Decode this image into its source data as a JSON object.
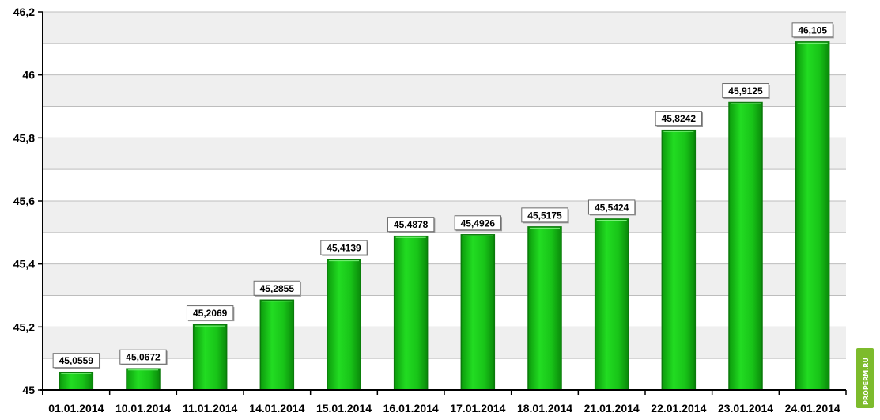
{
  "chart_data": {
    "type": "bar",
    "categories": [
      "01.01.2014",
      "10.01.2014",
      "11.01.2014",
      "14.01.2014",
      "15.01.2014",
      "16.01.2014",
      "17.01.2014",
      "18.01.2014",
      "21.01.2014",
      "22.01.2014",
      "23.01.2014",
      "24.01.2014"
    ],
    "values": [
      45.0559,
      45.0672,
      45.2069,
      45.2855,
      45.4139,
      45.4878,
      45.4926,
      45.5175,
      45.5424,
      45.8242,
      45.9125,
      46.105
    ],
    "data_labels": [
      "45,0559",
      "45,0672",
      "45,2069",
      "45,2855",
      "45,4139",
      "45,4878",
      "45,4926",
      "45,5175",
      "45,5424",
      "45,8242",
      "45,9125",
      "46,105"
    ],
    "ylim": [
      45,
      46.2
    ],
    "yticks": [
      45,
      45.2,
      45.4,
      45.6,
      45.8,
      46,
      46.2
    ],
    "ytick_labels": [
      "45",
      "45,2",
      "45,4",
      "45,6",
      "45,8",
      "46",
      "46,2"
    ],
    "grid": true,
    "bar_color": "#1fd31f",
    "title": "",
    "xlabel": "",
    "ylabel": ""
  },
  "watermark": {
    "text": "PROPERM.RU",
    "color": "#7dbb2c"
  }
}
